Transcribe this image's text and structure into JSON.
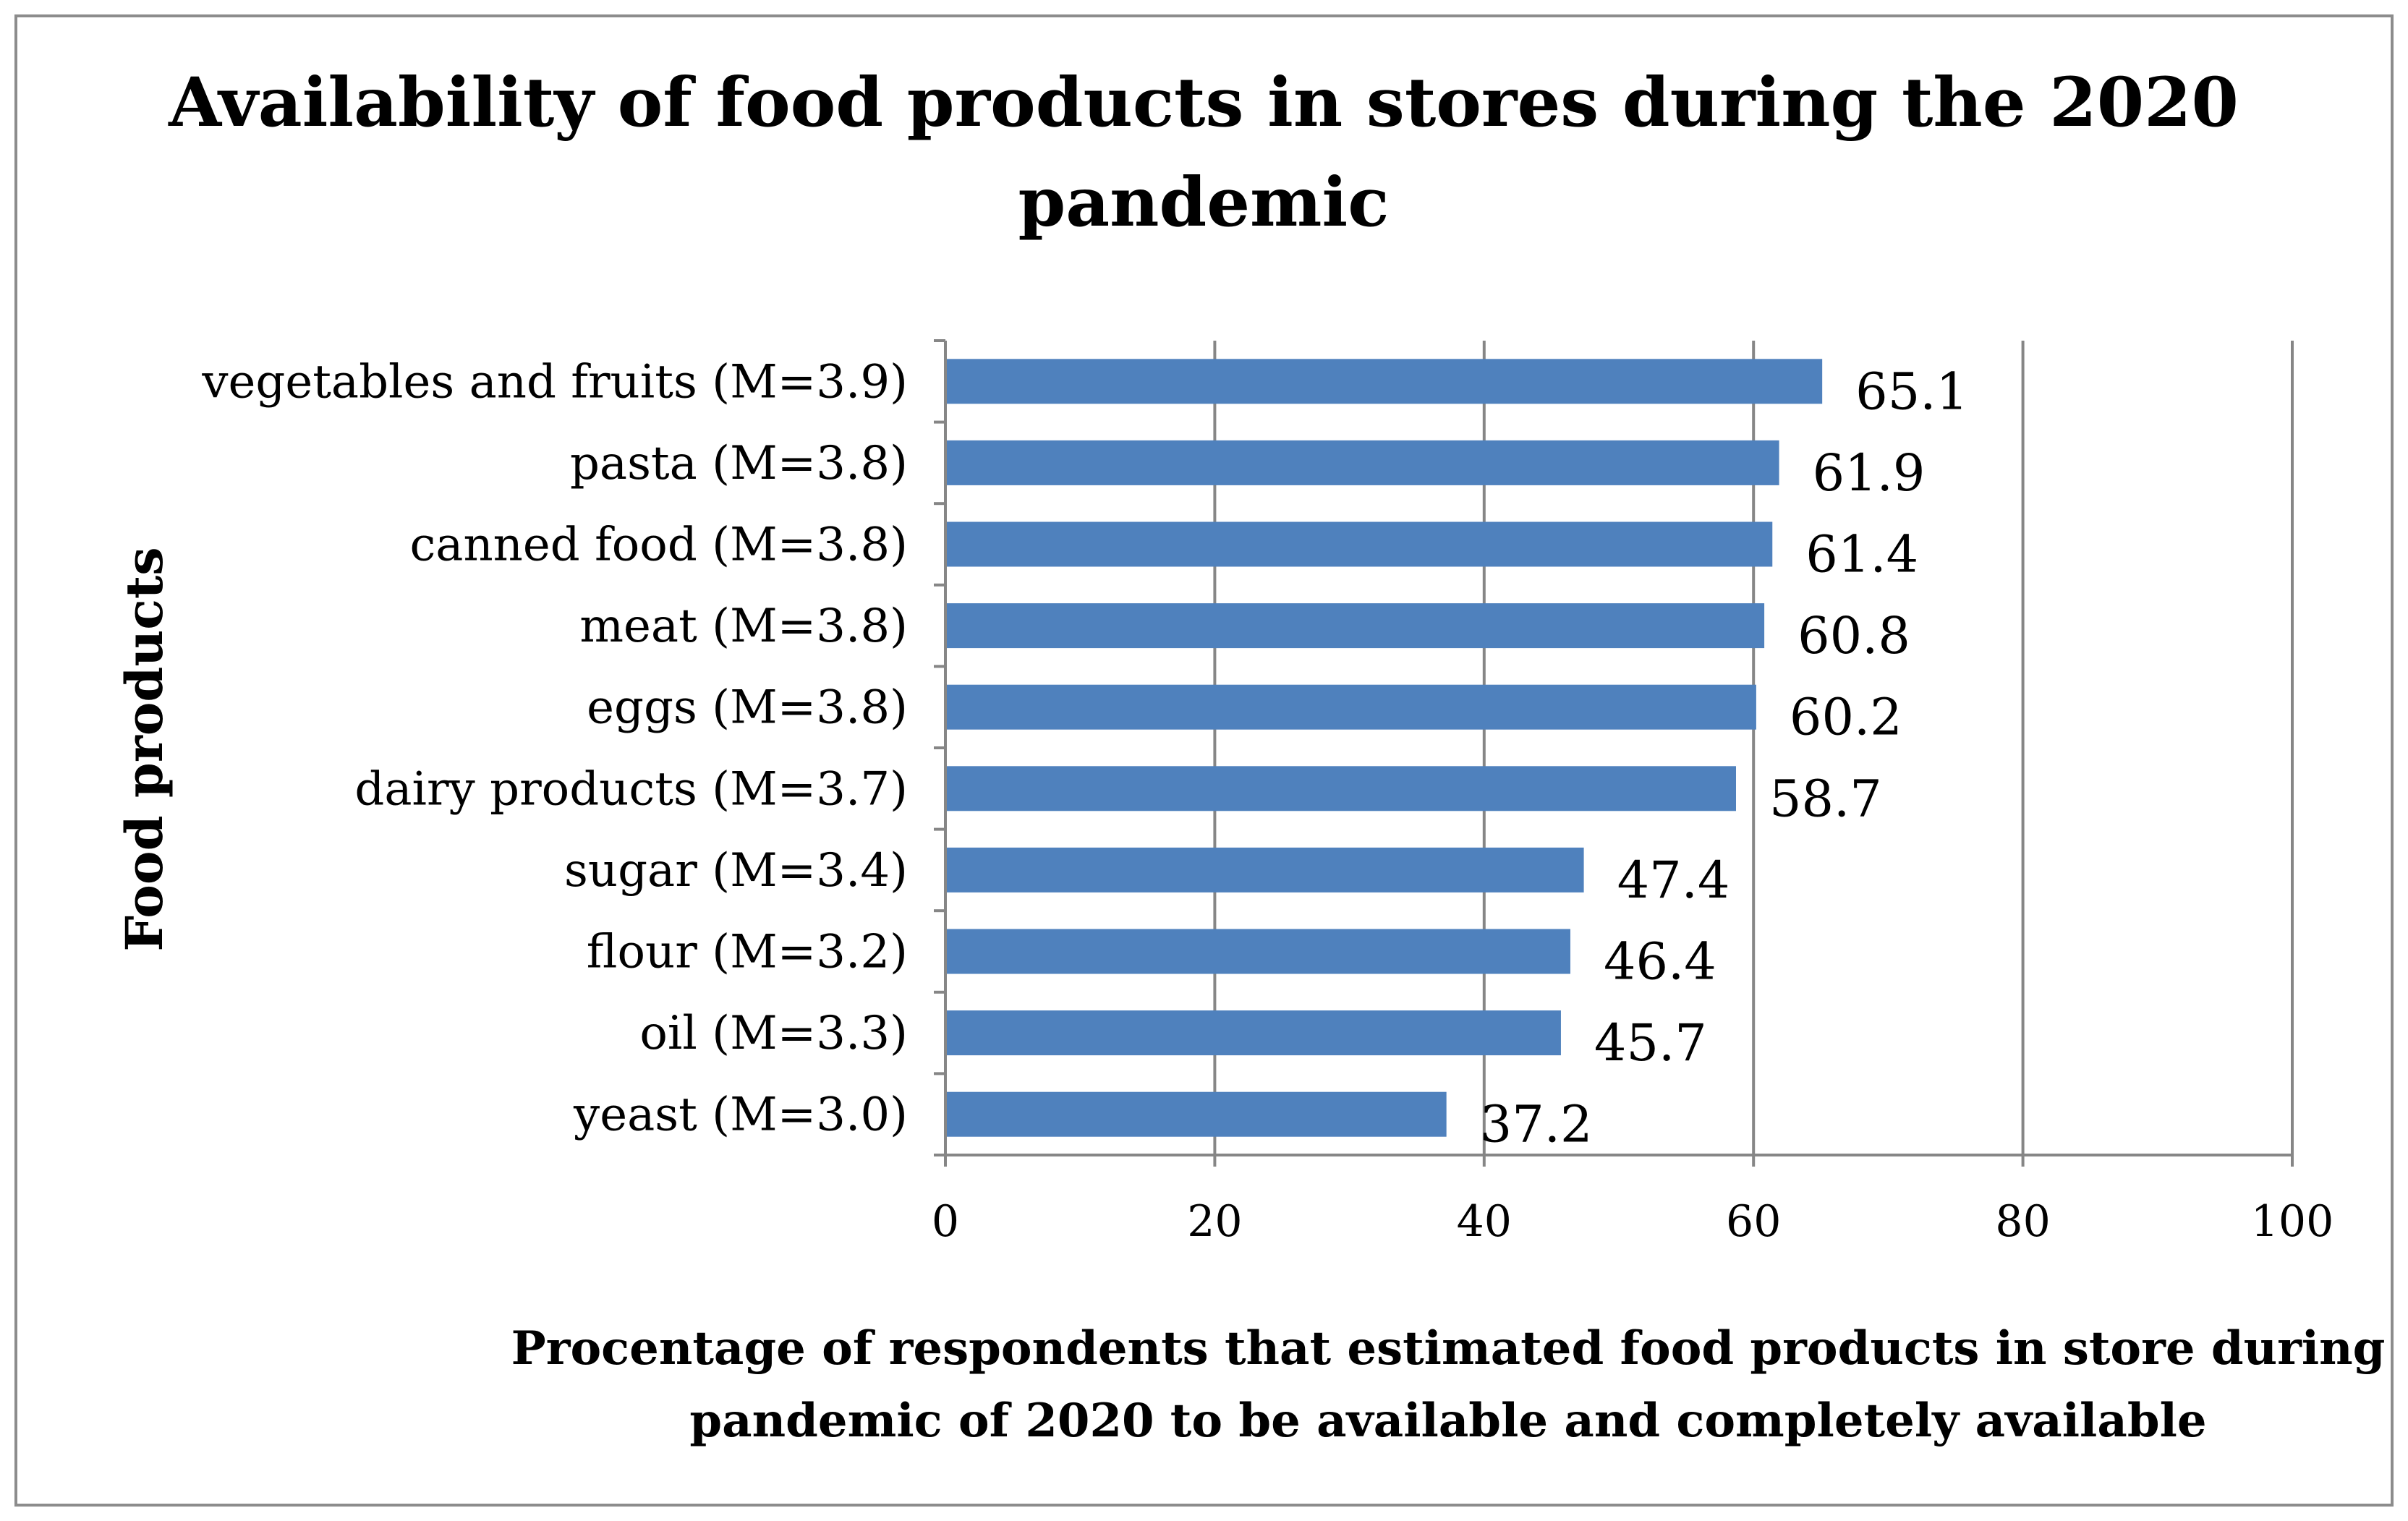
{
  "chart_data": {
    "type": "bar",
    "orientation": "horizontal",
    "title_lines": [
      "Availability of food products in stores during the 2020",
      "pandemic"
    ],
    "xlabel_lines": [
      "Procentage of respondents that estimated food products in store during",
      "pandemic of 2020 to be available and completely available"
    ],
    "ylabel": "Food products",
    "categories": [
      "vegetables and fruits (M=3.9)",
      "pasta (M=3.8)",
      "canned food (M=3.8)",
      "meat (M=3.8)",
      "eggs (M=3.8)",
      "dairy products (M=3.7)",
      "sugar (M=3.4)",
      "flour (M=3.2)",
      "oil (M=3.3)",
      "yeast (M=3.0)"
    ],
    "values": [
      65.1,
      61.9,
      61.4,
      60.8,
      60.2,
      58.7,
      47.4,
      46.4,
      45.7,
      37.2
    ],
    "data_labels": [
      "65.1",
      "61.9",
      "61.4",
      "60.8",
      "60.2",
      "58.7",
      "47.4",
      "46.4",
      "45.7",
      "37.2"
    ],
    "xlim": [
      0,
      100
    ],
    "xticks": [
      0,
      20,
      40,
      60,
      80,
      100
    ],
    "xtick_labels": [
      "0",
      "20",
      "40",
      "60",
      "80",
      "100"
    ],
    "grid": "vertical",
    "bar_color": "#4f81bd",
    "gridline_color": "#868686",
    "border_color": "#8c8c8c"
  }
}
